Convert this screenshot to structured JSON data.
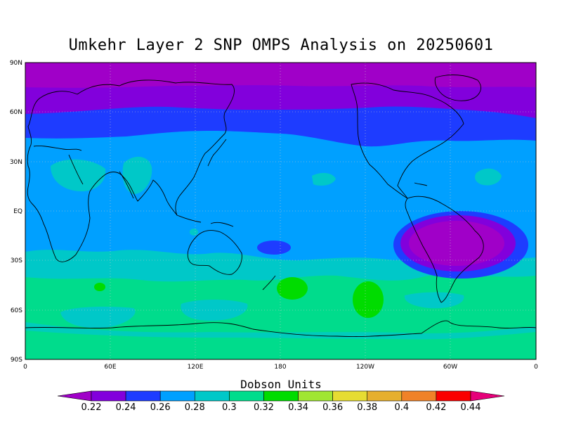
{
  "title": "Umkehr Layer 2 SNP OMPS Analysis on 20250601",
  "lat_ticks": [
    "90N",
    "60N",
    "30N",
    "EQ",
    "30S",
    "60S",
    "90S"
  ],
  "lon_ticks": [
    "0",
    "60E",
    "120E",
    "180",
    "120W",
    "60W",
    "0"
  ],
  "colorbar": {
    "title": "Dobson Units",
    "labels": [
      "0.22",
      "0.24",
      "0.26",
      "0.28",
      "0.3",
      "0.32",
      "0.34",
      "0.36",
      "0.38",
      "0.4",
      "0.42",
      "0.44"
    ],
    "colors": [
      "#a000c8",
      "#8200dc",
      "#1e3cff",
      "#00a0ff",
      "#00c8c8",
      "#00dc8c",
      "#00dc00",
      "#a0e632",
      "#e6dc32",
      "#e6af2d",
      "#f08228",
      "#fa0000",
      "#e6007a"
    ]
  },
  "map_colors": {
    "lt_022": "#a000c8",
    "b022_024": "#8200dc",
    "b024_026": "#1e3cff",
    "b026_028": "#00a0ff",
    "b028_030": "#00c8c8",
    "b030_032": "#00dc8c",
    "b032_034": "#00dc00"
  }
}
